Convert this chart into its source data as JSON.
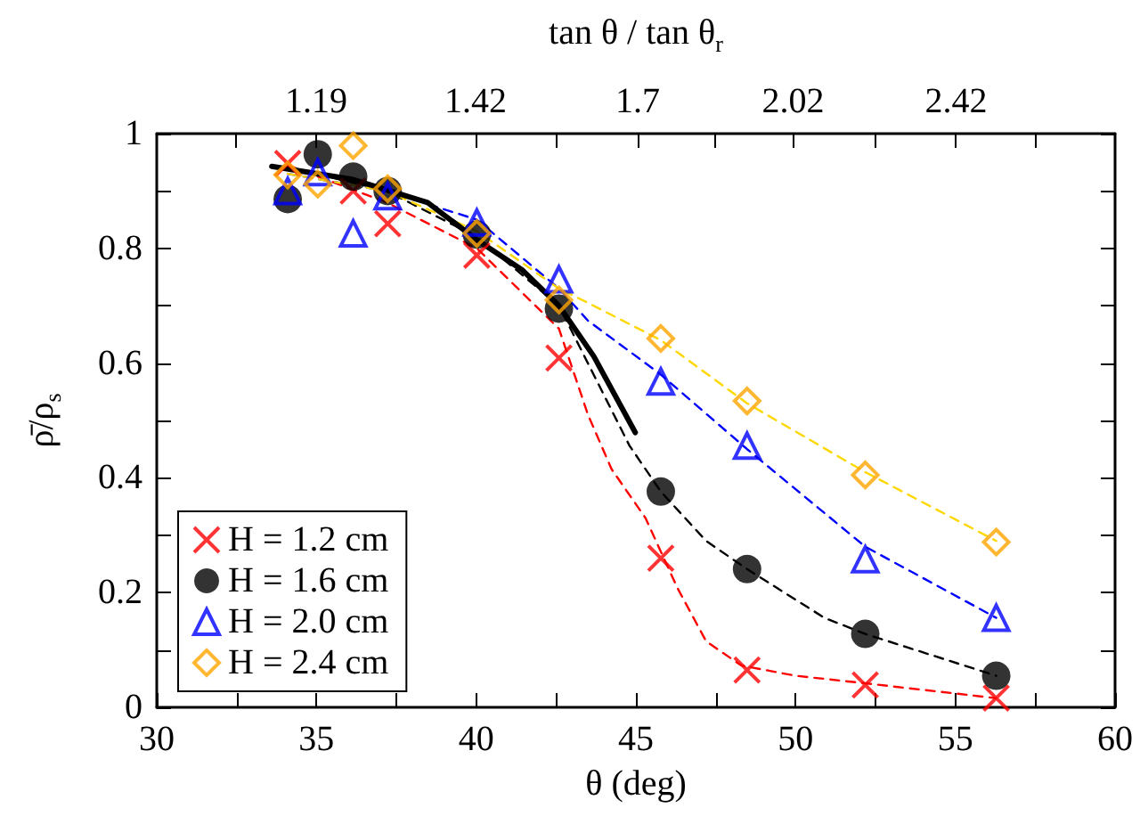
{
  "chart_data": {
    "type": "scatter",
    "xlabel": "θ (deg)",
    "ylabel": "ρ̄/ρ$_{s}$",
    "x2label": "tan θ / tan θ$_{r}$",
    "xlim": [
      30,
      60
    ],
    "xticks": [
      30,
      {
        "value": 32.5,
        "label": null
      },
      35,
      {
        "value": 37.5,
        "label": null
      },
      40,
      {
        "value": 42.5,
        "label": null
      },
      45,
      {
        "value": 47.5,
        "label": null
      },
      50,
      {
        "value": 52.5,
        "label": null
      },
      55,
      {
        "value": 57.5,
        "label": null
      },
      60
    ],
    "x2lim": [
      0.997,
      2.887
    ],
    "x2ticks": [
      {
        "value": 1.089,
        "label": null
      },
      1.19,
      {
        "value": 1.3,
        "label": null
      },
      1.42,
      {
        "value": 1.552,
        "label": null
      },
      1.7,
      {
        "value": 1.853,
        "label": null
      },
      2.02,
      {
        "value": 2.213,
        "label": null
      },
      2.42,
      {
        "value": 2.642,
        "label": null
      }
    ],
    "log": "x2",
    "ylim": [
      0,
      1
    ],
    "yticks": [
      0,
      {
        "value": 0.1,
        "label": null
      },
      0.2,
      {
        "value": 0.3,
        "label": null
      },
      0.4,
      {
        "value": 0.5,
        "label": null
      },
      0.6,
      {
        "value": 0.7,
        "label": null
      },
      0.8,
      {
        "value": 0.9,
        "label": null
      },
      1
    ],
    "grid": false,
    "legend": "bottom left",
    "series": [
      {
        "name": "H = 1.2 cm",
        "color": "#ff0000",
        "marker": "cross",
        "x": [
          34.1,
          35.04,
          36.15,
          37.23,
          40.02,
          42.59,
          45.78,
          48.48,
          52.18,
          56.28
        ],
        "values": [
          0.948,
          null,
          0.9,
          0.843,
          0.788,
          0.609,
          0.26,
          0.065,
          0.039,
          0.016
        ]
      },
      {
        "name": "H = 1.6 cm",
        "color": "#000000",
        "marker": "circle",
        "x": [
          34.1,
          35.04,
          36.15,
          37.23,
          40.02,
          42.59,
          45.78,
          48.48,
          52.18,
          56.28
        ],
        "values": [
          0.886,
          0.964,
          0.925,
          0.9,
          0.824,
          0.695,
          0.376,
          0.241,
          0.128,
          0.055
        ]
      },
      {
        "name": "H = 2.0 cm",
        "color": "#0000ff",
        "marker": "triangle",
        "x": [
          34.1,
          35.04,
          36.15,
          37.23,
          40.02,
          42.59,
          45.78,
          48.48,
          52.18,
          56.28
        ],
        "values": [
          0.9,
          0.933,
          0.826,
          0.891,
          0.845,
          0.746,
          0.568,
          0.456,
          0.258,
          0.156
        ]
      },
      {
        "name": "H = 2.4 cm",
        "color": "#ffa500",
        "marker": "diamond",
        "x": [
          34.1,
          35.04,
          36.15,
          37.23,
          40.02,
          42.59,
          45.78,
          48.48,
          52.18,
          56.28
        ],
        "values": [
          0.928,
          0.912,
          0.979,
          0.904,
          0.826,
          0.71,
          0.643,
          0.534,
          0.405,
          0.288
        ]
      },
      {
        "type": "line",
        "color": "#ff0000",
        "marker": "none",
        "line_style": "dashed",
        "x": [
          34.1,
          37.2,
          40.02,
          42.59,
          43.5,
          44.24,
          45.3,
          46.3,
          47.2,
          48.3,
          50,
          52,
          56.28
        ],
        "values": [
          0.945,
          0.88,
          0.8,
          0.66,
          0.51,
          0.415,
          0.33,
          0.208,
          0.115,
          0.073,
          0.055,
          0.043,
          0.016
        ]
      },
      {
        "type": "line",
        "color": "#000000",
        "marker": "none",
        "line_style": "dashed",
        "x": [
          35,
          37.2,
          40.02,
          42.59,
          44.8,
          45.78,
          47.2,
          48.48,
          50.9,
          52.18,
          54.65,
          56.28
        ],
        "values": [
          0.93,
          0.9,
          0.82,
          0.7,
          0.456,
          0.376,
          0.29,
          0.241,
          0.156,
          0.128,
          0.084,
          0.055
        ]
      },
      {
        "type": "line",
        "color": "#0000ff",
        "marker": "none",
        "line_style": "dashed",
        "x": [
          34.1,
          37.2,
          40.02,
          42.59,
          43.5,
          45.78,
          48.48,
          52.18,
          56.28
        ],
        "values": [
          0.93,
          0.9,
          0.85,
          0.73,
          0.674,
          0.58,
          0.45,
          0.28,
          0.156
        ]
      },
      {
        "type": "line",
        "color": "#ffd700",
        "marker": "none",
        "line_style": "dashed",
        "x": [
          34.1,
          37.2,
          40.02,
          42.59,
          43.5,
          45.78,
          48.48,
          52.18,
          56.28
        ],
        "values": [
          0.93,
          0.9,
          0.83,
          0.73,
          0.705,
          0.64,
          0.53,
          0.41,
          0.29
        ]
      },
      {
        "type": "line",
        "color": "#000000",
        "marker": "none",
        "line_style": "solid",
        "x": [
          33.6,
          36.15,
          38.48,
          40.02,
          41.45,
          42.59,
          43.68,
          44.98
        ],
        "values": [
          0.943,
          0.92,
          0.88,
          0.815,
          0.762,
          0.7,
          0.612,
          0.479
        ]
      }
    ]
  }
}
